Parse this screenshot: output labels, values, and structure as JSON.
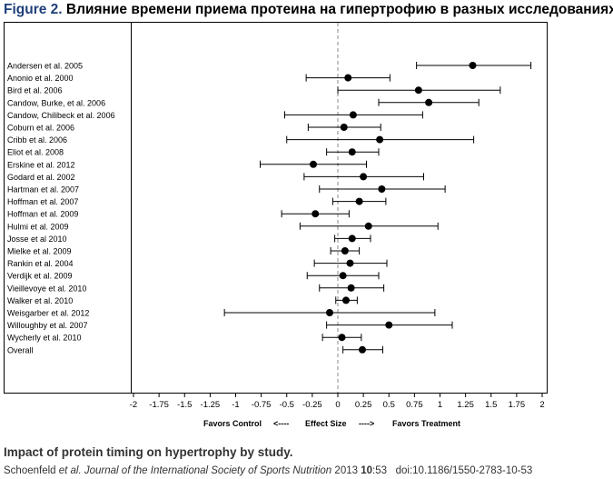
{
  "figure": {
    "label": "Figure 2.",
    "title": "Влияние времени приема протеина на гипертрофию в разных исследованиях"
  },
  "chart_data": {
    "type": "forest",
    "studies": [
      {
        "name": "Andersen et al. 2005",
        "estimate": 1.32,
        "lower": 0.77,
        "upper": 1.89
      },
      {
        "name": "Anonio et al. 2000",
        "estimate": 0.1,
        "lower": -0.31,
        "upper": 0.51
      },
      {
        "name": "Bird et al. 2006",
        "estimate": 0.79,
        "lower": 0.0,
        "upper": 1.59
      },
      {
        "name": "Candow, Burke, et al. 2006",
        "estimate": 0.89,
        "lower": 0.4,
        "upper": 1.38
      },
      {
        "name": "Candow, Chilibeck et al. 2006",
        "estimate": 0.15,
        "lower": -0.52,
        "upper": 0.83
      },
      {
        "name": "Coburn et al. 2006",
        "estimate": 0.06,
        "lower": -0.29,
        "upper": 0.42
      },
      {
        "name": "Cribb et al. 2006",
        "estimate": 0.41,
        "lower": -0.5,
        "upper": 1.33
      },
      {
        "name": "Eliot et al. 2008",
        "estimate": 0.14,
        "lower": -0.11,
        "upper": 0.4
      },
      {
        "name": "Erskine et al. 2012",
        "estimate": -0.24,
        "lower": -0.76,
        "upper": 0.28
      },
      {
        "name": "Godard et al. 2002",
        "estimate": 0.25,
        "lower": -0.33,
        "upper": 0.84
      },
      {
        "name": "Hartman et al. 2007",
        "estimate": 0.43,
        "lower": -0.18,
        "upper": 1.05
      },
      {
        "name": "Hoffman et al. 2007",
        "estimate": 0.21,
        "lower": -0.05,
        "upper": 0.47
      },
      {
        "name": "Hoffman et al. 2009",
        "estimate": -0.22,
        "lower": -0.55,
        "upper": 0.11
      },
      {
        "name": "Hulmi et al. 2009",
        "estimate": 0.3,
        "lower": -0.37,
        "upper": 0.98
      },
      {
        "name": "Josse et al 2010",
        "estimate": 0.14,
        "lower": -0.03,
        "upper": 0.32
      },
      {
        "name": "Mielke et al. 2009",
        "estimate": 0.07,
        "lower": -0.07,
        "upper": 0.21
      },
      {
        "name": "Rankin et al. 2004",
        "estimate": 0.12,
        "lower": -0.23,
        "upper": 0.48
      },
      {
        "name": "Verdijk et al. 2009",
        "estimate": 0.05,
        "lower": -0.3,
        "upper": 0.4
      },
      {
        "name": "Vieillevoye et al. 2010",
        "estimate": 0.13,
        "lower": -0.18,
        "upper": 0.45
      },
      {
        "name": "Walker et al. 2010",
        "estimate": 0.08,
        "lower": -0.02,
        "upper": 0.19
      },
      {
        "name": "Weisgarber et al. 2012",
        "estimate": -0.08,
        "lower": -1.11,
        "upper": 0.95
      },
      {
        "name": "Willoughby et al. 2007",
        "estimate": 0.5,
        "lower": -0.11,
        "upper": 1.12
      },
      {
        "name": "Wycherly et al. 2010",
        "estimate": 0.04,
        "lower": -0.15,
        "upper": 0.23
      },
      {
        "name": "Overall",
        "estimate": 0.24,
        "lower": 0.05,
        "upper": 0.44
      }
    ],
    "xlim": [
      -2,
      2
    ],
    "ticks": [
      "-2",
      "-1.75",
      "-1.5",
      "-1.25",
      "-1",
      "-0.75",
      "-0.5",
      "-0.25",
      "0",
      "0.25",
      "0.5",
      "0.75",
      "1",
      "1.25",
      "1.5",
      "1.75",
      "2"
    ],
    "reference_line": 0,
    "xlabel": {
      "left": "Favors Control",
      "left_arrow": "<----",
      "center": "Effect Size",
      "right_arrow": "---->",
      "right": "Favors Treatment"
    }
  },
  "caption": {
    "title": "Impact of protein timing on hypertrophy by study.",
    "authors": "Schoenfeld",
    "etal": "et al.",
    "journal": "Journal of the International Society of Sports Nutrition",
    "year": "2013",
    "volume": "10",
    "pages": ":53",
    "doi": "doi:10.1186/1550-2783-10-53"
  }
}
